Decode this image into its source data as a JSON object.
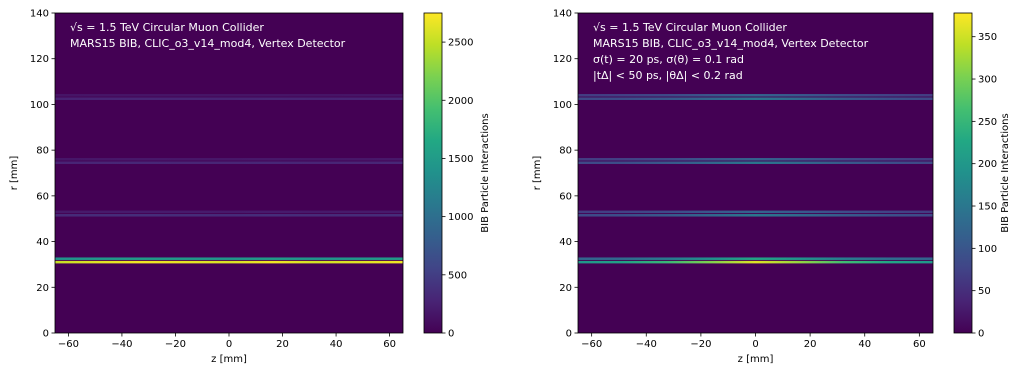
{
  "chart_data": [
    {
      "type": "heatmap",
      "annotation": [
        "√s = 1.5 TeV Circular Muon Collider",
        "MARS15 BIB, CLIC_o3_v14_mod4, Vertex Detector"
      ],
      "xlabel": "z [mm]",
      "ylabel": "r [mm]",
      "xlim": [
        -65,
        65
      ],
      "ylim": [
        0,
        140
      ],
      "xticks": [
        "−60",
        "−40",
        "−20",
        "0",
        "20",
        "40",
        "60"
      ],
      "yticks": [
        "0",
        "20",
        "40",
        "60",
        "80",
        "100",
        "120",
        "140"
      ],
      "colorbar_label": "BIB Particle Interactions",
      "colorbar_ticks": [
        "0",
        "500",
        "1000",
        "1500",
        "2000",
        "2500"
      ],
      "colorbar_range": [
        0,
        2750
      ],
      "colormap": "viridis",
      "layers": [
        {
          "r": 31,
          "peak": 2700
        },
        {
          "r": 32.5,
          "peak": 1500
        },
        {
          "r": 51.5,
          "peak": 350
        },
        {
          "r": 53,
          "peak": 200
        },
        {
          "r": 74.5,
          "peak": 300
        },
        {
          "r": 76,
          "peak": 180
        },
        {
          "r": 102.5,
          "peak": 280
        },
        {
          "r": 104,
          "peak": 160
        }
      ]
    },
    {
      "type": "heatmap",
      "annotation": [
        "√s = 1.5 TeV Circular Muon Collider",
        "MARS15 BIB, CLIC_o3_v14_mod4, Vertex Detector",
        "σ(t) = 20 ps, σ(θ) = 0.1 rad",
        "|tΔ| < 50 ps, |θΔ| < 0.2 rad"
      ],
      "xlabel": "z [mm]",
      "ylabel": "r [mm]",
      "xlim": [
        -65,
        65
      ],
      "ylim": [
        0,
        140
      ],
      "xticks": [
        "−60",
        "−40",
        "−20",
        "0",
        "20",
        "40",
        "60"
      ],
      "yticks": [
        "0",
        "20",
        "40",
        "60",
        "80",
        "100",
        "120",
        "140"
      ],
      "colorbar_label": "BIB Particle Interactions",
      "colorbar_ticks": [
        "0",
        "50",
        "100",
        "150",
        "200",
        "250",
        "300",
        "350"
      ],
      "colorbar_range": [
        0,
        378
      ],
      "colormap": "viridis",
      "layers": [
        {
          "r": 31,
          "peak": 360
        },
        {
          "r": 32.5,
          "peak": 220
        },
        {
          "r": 51.5,
          "peak": 150
        },
        {
          "r": 53,
          "peak": 120
        },
        {
          "r": 74.5,
          "peak": 150
        },
        {
          "r": 76,
          "peak": 120
        },
        {
          "r": 102.5,
          "peak": 150
        },
        {
          "r": 104,
          "peak": 120
        }
      ]
    }
  ]
}
